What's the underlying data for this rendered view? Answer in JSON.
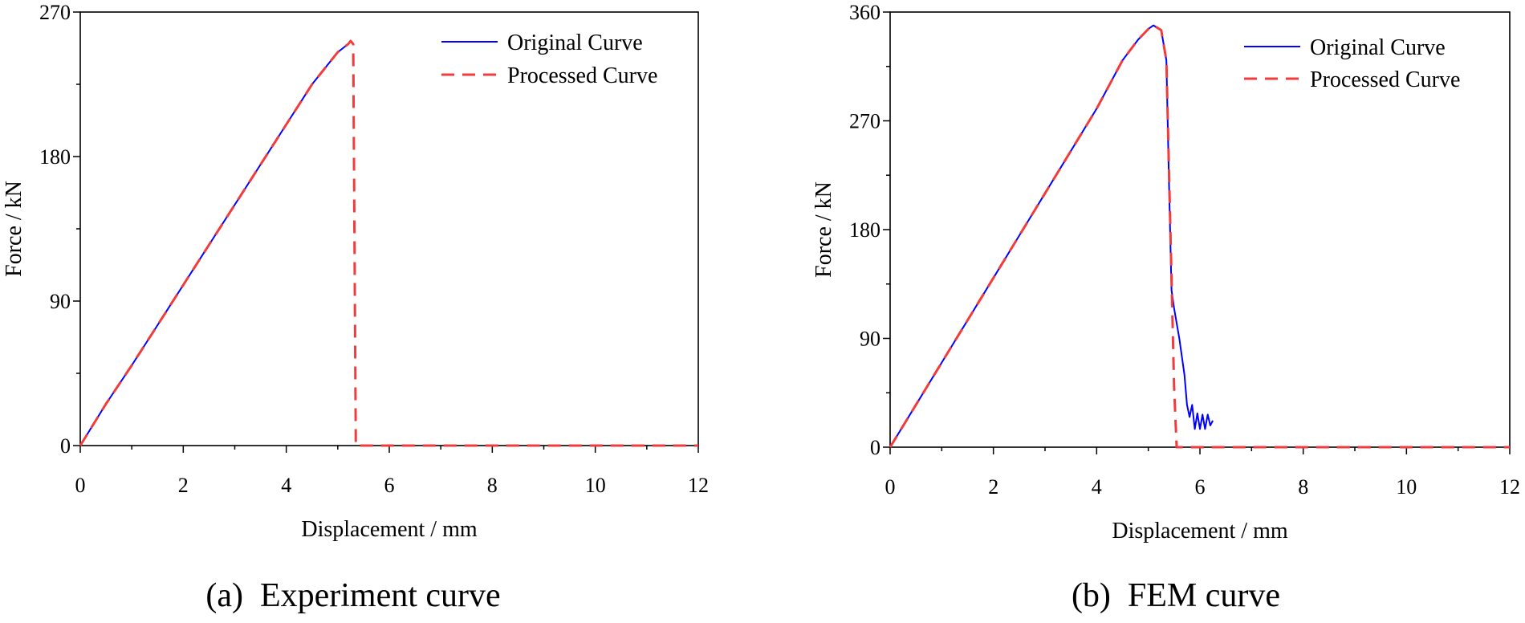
{
  "chart_data": [
    {
      "type": "line",
      "caption": "(a)  Experiment curve",
      "xlabel": "Displacement / mm",
      "ylabel": "Force / kN",
      "xlim": [
        0,
        12
      ],
      "ylim": [
        0,
        270
      ],
      "xticks": [
        0,
        2,
        4,
        6,
        8,
        10,
        12
      ],
      "yticks": [
        0,
        90,
        180,
        270
      ],
      "xtick_labels": [
        "0",
        "2",
        "4",
        "6",
        "8",
        "10",
        "12"
      ],
      "ytick_labels": [
        "0",
        "90",
        "180",
        "270"
      ],
      "grid": false,
      "legend_position": "top-right",
      "series": [
        {
          "name": "Original Curve",
          "color": "#0000ff",
          "style": "solid",
          "x": [
            0,
            0.5,
            1,
            1.5,
            2,
            2.5,
            3,
            3.5,
            4,
            4.5,
            5,
            5.2,
            5.25
          ],
          "y": [
            0,
            26,
            50,
            75,
            100,
            125,
            150,
            175,
            200,
            225,
            245,
            250,
            252
          ]
        },
        {
          "name": "Processed Curve",
          "color": "#f03c3c",
          "style": "dashed",
          "x": [
            0,
            0.5,
            1,
            1.5,
            2,
            2.5,
            3,
            3.5,
            4,
            4.5,
            5,
            5.2,
            5.25,
            5.3,
            5.35,
            6,
            8,
            10,
            12
          ],
          "y": [
            0,
            26,
            50,
            75,
            100,
            125,
            150,
            175,
            200,
            225,
            245,
            250,
            252,
            250,
            0,
            0,
            0,
            0,
            0
          ]
        }
      ]
    },
    {
      "type": "line",
      "caption": "(b)  FEM curve",
      "xlabel": "Displacement / mm",
      "ylabel": "Force / kN",
      "xlim": [
        0,
        12
      ],
      "ylim": [
        0,
        360
      ],
      "xticks": [
        0,
        2,
        4,
        6,
        8,
        10,
        12
      ],
      "yticks": [
        0,
        90,
        180,
        270,
        360
      ],
      "xtick_labels": [
        "0",
        "2",
        "4",
        "6",
        "8",
        "10",
        "12"
      ],
      "ytick_labels": [
        "0",
        "90",
        "180",
        "270",
        "360"
      ],
      "grid": false,
      "legend_position": "top-right",
      "series": [
        {
          "name": "Original Curve",
          "color": "#0000ff",
          "style": "solid",
          "x": [
            0,
            1,
            2,
            3,
            4,
            4.5,
            4.8,
            5.0,
            5.1,
            5.25,
            5.35,
            5.4,
            5.45,
            5.5,
            5.6,
            5.7,
            5.75,
            5.8,
            5.85,
            5.9,
            5.95,
            6.0,
            6.05,
            6.1,
            6.15,
            6.2,
            6.25
          ],
          "y": [
            0,
            70,
            140,
            210,
            280,
            320,
            337,
            346,
            349,
            345,
            320,
            220,
            130,
            115,
            90,
            60,
            35,
            25,
            35,
            15,
            28,
            15,
            27,
            15,
            27,
            18,
            22
          ]
        },
        {
          "name": "Processed Curve",
          "color": "#f03c3c",
          "style": "dashed",
          "x": [
            0,
            1,
            2,
            3,
            4,
            4.5,
            4.8,
            5.0,
            5.1,
            5.25,
            5.35,
            5.5,
            5.55,
            6,
            8,
            10,
            12
          ],
          "y": [
            0,
            70,
            140,
            210,
            280,
            320,
            337,
            346,
            349,
            345,
            320,
            50,
            0,
            0,
            0,
            0,
            0
          ]
        }
      ]
    }
  ]
}
